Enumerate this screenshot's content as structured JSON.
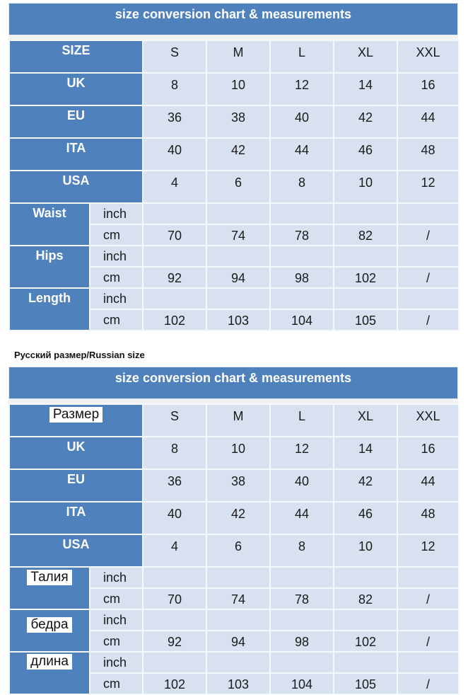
{
  "chart1": {
    "title": "size  conversion  chart   & measurements",
    "size_label": "SIZE",
    "sizes": [
      "S",
      "M",
      "L",
      "XL",
      "XXL"
    ],
    "rows": [
      {
        "label": "UK",
        "values": [
          "8",
          "10",
          "12",
          "14",
          "16"
        ]
      },
      {
        "label": "EU",
        "values": [
          "36",
          "38",
          "40",
          "42",
          "44"
        ]
      },
      {
        "label": "ITA",
        "values": [
          "40",
          "42",
          "44",
          "46",
          "48"
        ]
      },
      {
        "label": "USA",
        "values": [
          "4",
          "6",
          "8",
          "10",
          "12"
        ]
      }
    ],
    "measurements": [
      {
        "label": "Waist",
        "inch": [
          "",
          "",
          "",
          "",
          ""
        ],
        "cm": [
          "70",
          "74",
          "78",
          "82",
          "/"
        ]
      },
      {
        "label": "Hips",
        "inch": [
          "",
          "",
          "",
          "",
          ""
        ],
        "cm": [
          "92",
          "94",
          "98",
          "102",
          "/"
        ]
      },
      {
        "label": "Length",
        "inch": [
          "",
          "",
          "",
          "",
          ""
        ],
        "cm": [
          "102",
          "103",
          "104",
          "105",
          "/"
        ]
      }
    ],
    "unit_inch": "inch",
    "unit_cm": "cm"
  },
  "russian_note": "Русский размер/Russian size",
  "chart2": {
    "title": "size  conversion  chart   & measurements",
    "size_label": "Размер",
    "sizes": [
      "S",
      "M",
      "L",
      "XL",
      "XXL"
    ],
    "rows": [
      {
        "label": "UK",
        "values": [
          "8",
          "10",
          "12",
          "14",
          "16"
        ]
      },
      {
        "label": "EU",
        "values": [
          "36",
          "38",
          "40",
          "42",
          "44"
        ]
      },
      {
        "label": "ITA",
        "values": [
          "40",
          "42",
          "44",
          "46",
          "48"
        ]
      },
      {
        "label": "USA",
        "values": [
          "4",
          "6",
          "8",
          "10",
          "12"
        ]
      }
    ],
    "measurements": [
      {
        "label": "Талия",
        "inch": [
          "",
          "",
          "",
          "",
          ""
        ],
        "cm": [
          "70",
          "74",
          "78",
          "82",
          "/"
        ]
      },
      {
        "label": "бедра",
        "inch": [
          "",
          "",
          "",
          "",
          ""
        ],
        "cm": [
          "92",
          "94",
          "98",
          "102",
          "/"
        ]
      },
      {
        "label": "длина",
        "inch": [
          "",
          "",
          "",
          "",
          ""
        ],
        "cm": [
          "102",
          "103",
          "104",
          "105",
          "/"
        ]
      }
    ],
    "unit_inch": "inch",
    "unit_cm": "cm"
  }
}
